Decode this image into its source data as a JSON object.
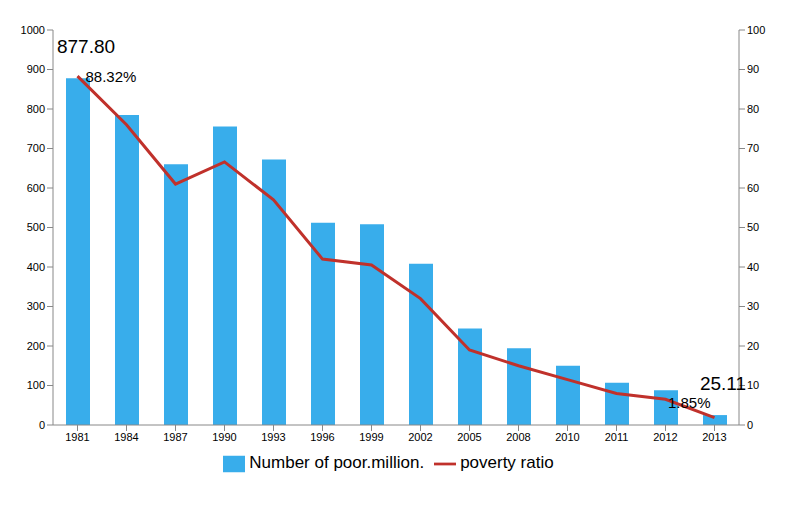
{
  "chart_data": {
    "type": "bar",
    "categories": [
      "1981",
      "1984",
      "1987",
      "1990",
      "1993",
      "1996",
      "1999",
      "2002",
      "2005",
      "2008",
      "2010",
      "2011",
      "2012",
      "2013"
    ],
    "series": [
      {
        "name": "Number of poor.million.",
        "type": "bar",
        "color": "#38adeb",
        "values": [
          877.8,
          785,
          660,
          756,
          672,
          512,
          508,
          408,
          244,
          194,
          150,
          107,
          88,
          25.11
        ],
        "value_labels": [
          "877.80",
          null,
          null,
          null,
          null,
          null,
          null,
          null,
          null,
          null,
          null,
          null,
          null,
          "25.11"
        ]
      },
      {
        "name": "poverty ratio",
        "type": "line",
        "axis": "y2",
        "color": "#c0312b",
        "values": [
          88.32,
          76,
          61,
          66.6,
          57,
          42,
          40.5,
          32,
          19,
          15,
          11.5,
          8,
          6.5,
          1.85
        ],
        "value_labels": [
          "88.32%",
          null,
          null,
          null,
          null,
          null,
          null,
          null,
          null,
          null,
          null,
          null,
          null,
          "1.85%"
        ]
      }
    ],
    "ylim": [
      0,
      1000
    ],
    "yticks": [
      0,
      100,
      200,
      300,
      400,
      500,
      600,
      700,
      800,
      900,
      1000
    ],
    "y2lim": [
      0,
      100
    ],
    "y2ticks": [
      0,
      10,
      20,
      30,
      40,
      50,
      60,
      70,
      80,
      90,
      100
    ],
    "grid": false,
    "legend": "bottom",
    "data_labels": true
  }
}
